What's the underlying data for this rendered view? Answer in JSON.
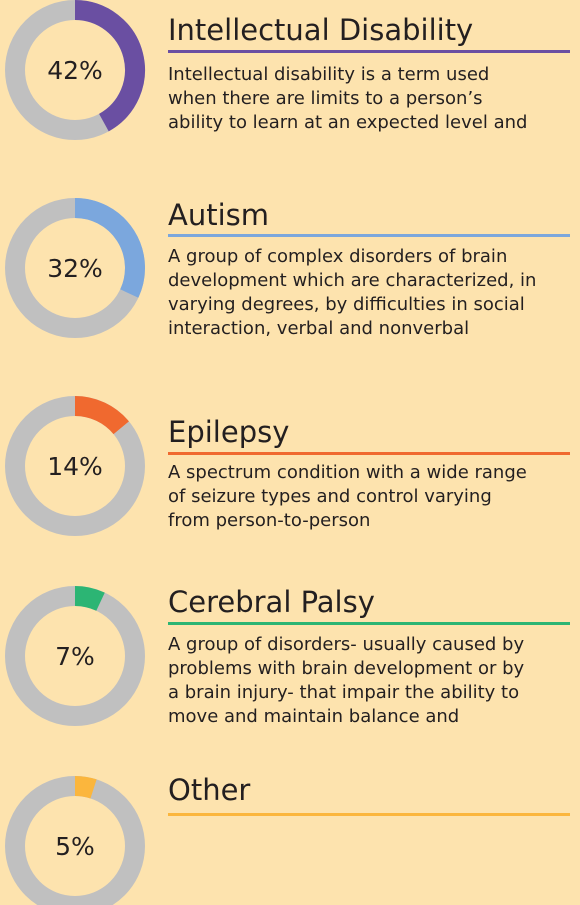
{
  "chart_data": [
    {
      "type": "donut",
      "title": "Intellectual Disability",
      "values": [
        42
      ],
      "value_labels": [
        "42%"
      ],
      "color": "#6a4fa2",
      "description": [
        "Intellectual disability is a term used",
        "when there are limits to a person’s",
        "ability to learn at an expected level and"
      ]
    },
    {
      "type": "donut",
      "title": "Autism",
      "values": [
        32
      ],
      "value_labels": [
        "32%"
      ],
      "color": "#7ba7dd",
      "description": [
        "A group of complex disorders of brain",
        "development which are characterized, in",
        "varying degrees, by difficulties in social",
        "interaction, verbal and nonverbal"
      ]
    },
    {
      "type": "donut",
      "title": "Epilepsy",
      "values": [
        14
      ],
      "value_labels": [
        "14%"
      ],
      "color": "#f0692f",
      "description": [
        "A spectrum condition with a wide range",
        "of seizure types and control varying",
        "from person-to-person"
      ]
    },
    {
      "type": "donut",
      "title": "Cerebral Palsy",
      "values": [
        7
      ],
      "value_labels": [
        "7%"
      ],
      "color": "#2cb574",
      "description": [
        "A group of disorders- usually caused by",
        "problems with brain development or by",
        "a brain injury- that impair the ability to",
        "move and maintain balance and"
      ]
    },
    {
      "type": "donut",
      "title": "Other",
      "values": [
        5
      ],
      "value_labels": [
        "5%"
      ],
      "color": "#fbb63d",
      "description": []
    }
  ]
}
